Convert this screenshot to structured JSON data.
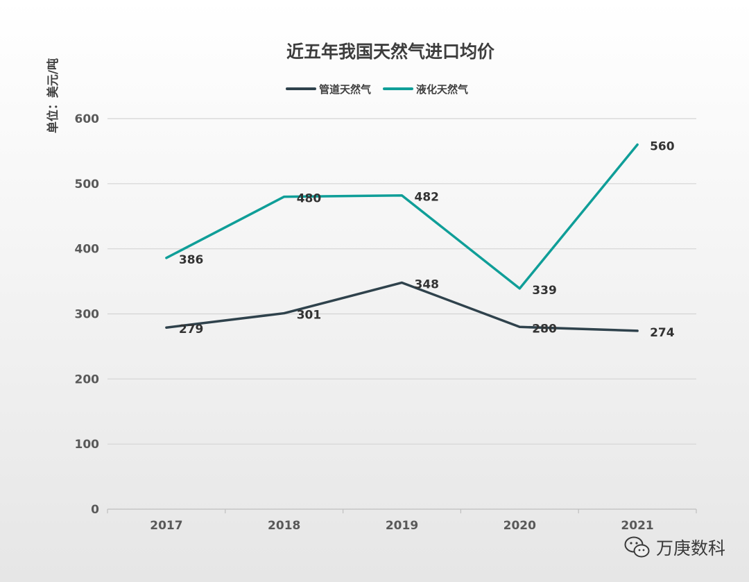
{
  "chart_data": {
    "type": "line",
    "title": "近五年我国天然气进口均价",
    "unit_label": "单位：美元/吨",
    "categories": [
      "2017",
      "2018",
      "2019",
      "2020",
      "2021"
    ],
    "ylim": [
      0,
      600
    ],
    "yticks": [
      0,
      100,
      200,
      300,
      400,
      500,
      600
    ],
    "grid": true,
    "legend_position": "top-center",
    "series": [
      {
        "name": "管道天然气",
        "color": "#2f424c",
        "values": [
          279,
          301,
          348,
          280,
          274
        ]
      },
      {
        "name": "液化天然气",
        "color": "#0f9e98",
        "values": [
          386,
          480,
          482,
          339,
          560
        ]
      }
    ]
  },
  "watermark": {
    "text": "万庚数科",
    "icon": "wechat-icon"
  }
}
